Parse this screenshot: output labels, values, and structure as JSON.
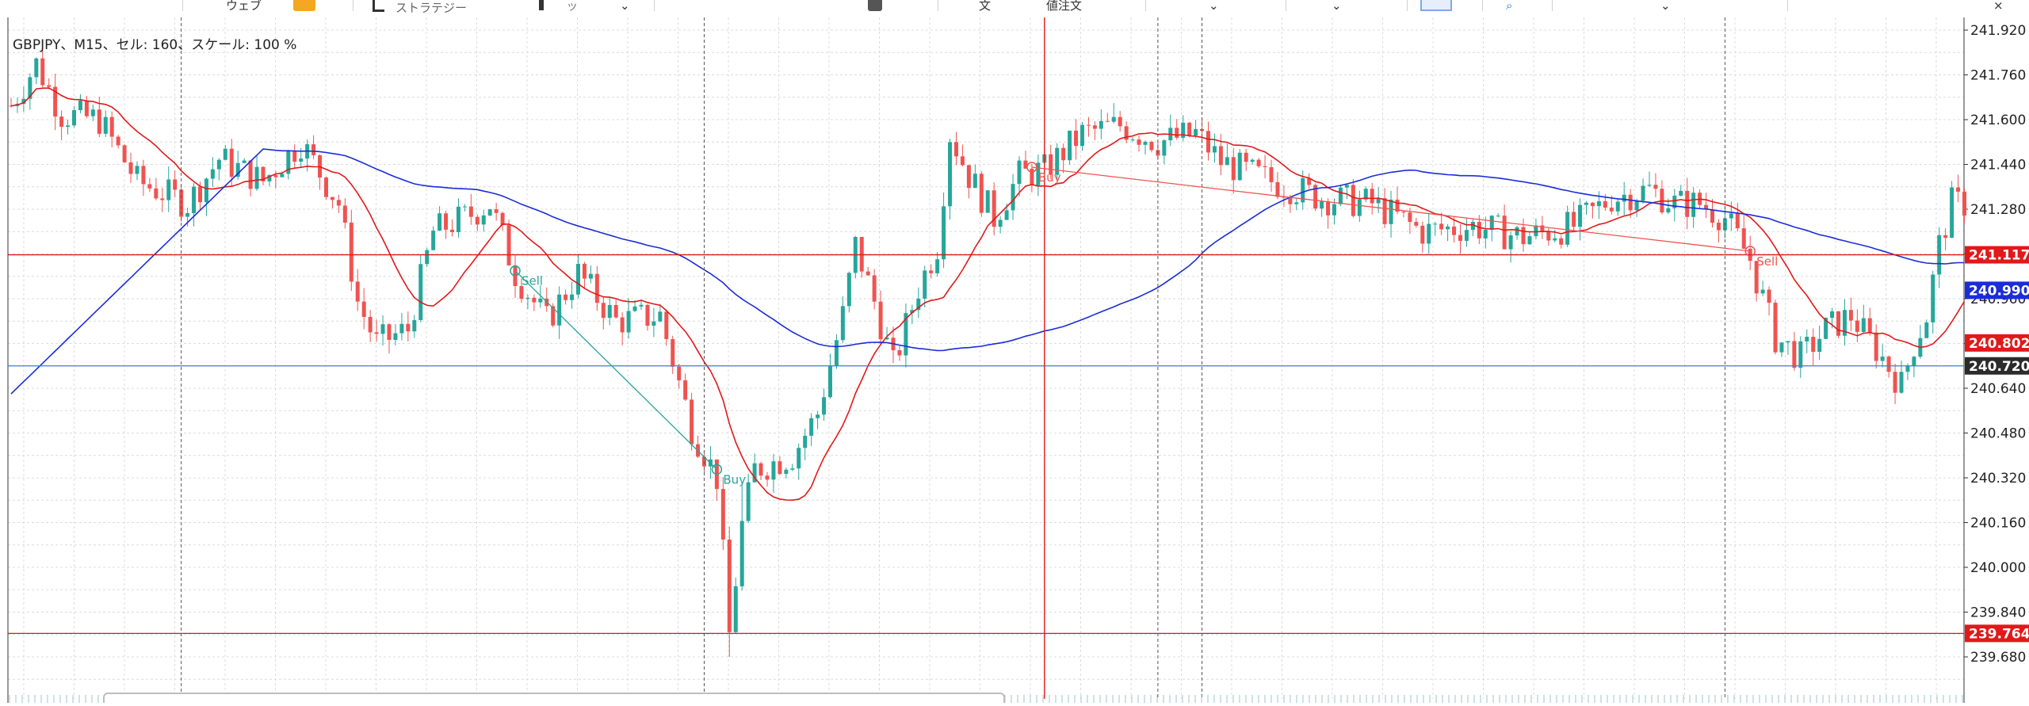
{
  "toolbar": {
    "items": [
      {
        "label": "ウェブ",
        "icon": "web-icon"
      },
      {
        "label": "ストラテジー",
        "icon": "bar-chart-icon"
      },
      {
        "label": "ツ",
        "icon": "candlestick-icon"
      },
      {
        "label": "文",
        "icon": "text-icon"
      },
      {
        "label": "値注文",
        "icon": "order-icon"
      }
    ],
    "colors": {
      "accent": "#f5a623",
      "search": "#1a73e8"
    }
  },
  "chart_title": "GBPJPY、M15、セル: 160、スケール: 100 %",
  "chart_data": {
    "type": "candlestick",
    "symbol": "GBPJPY",
    "timeframe": "M15",
    "ylim": [
      239.64,
      241.96
    ],
    "y_ticks": [
      "241.920",
      "241.760",
      "241.600",
      "241.440",
      "241.280",
      "241.120",
      "240.960",
      "240.800",
      "240.640",
      "240.480",
      "240.320",
      "240.160",
      "240.000",
      "239.840",
      "239.680"
    ],
    "grid": true,
    "ma_fast": {
      "name": "",
      "color": "#e11919"
    },
    "ma_slow": {
      "name": "",
      "color": "#1a2dd8"
    },
    "horizontal_lines": [
      {
        "price": 241.117,
        "color": "#e11919"
      },
      {
        "price": 240.72,
        "color": "#3d7be3"
      },
      {
        "price": 239.764,
        "color": "#e11919"
      }
    ],
    "vertical_lines": [
      {
        "bar": 164,
        "color": "#e11919",
        "style": "solid"
      },
      {
        "bar": 27,
        "color": "#555555",
        "style": "dashed"
      },
      {
        "bar": 110,
        "color": "#555555",
        "style": "dashed"
      },
      {
        "bar": 182,
        "color": "#555555",
        "style": "dashed"
      },
      {
        "bar": 189,
        "color": "#555555",
        "style": "dashed"
      },
      {
        "bar": 272,
        "color": "#555555",
        "style": "dashed"
      }
    ],
    "price_labels": [
      {
        "text": "241.117",
        "price": 241.117,
        "bg": "#e11919",
        "fg": "#ffffff"
      },
      {
        "text": "240.990",
        "price": 240.99,
        "bg": "#1a2dd8",
        "fg": "#ffffff"
      },
      {
        "text": "240.802",
        "price": 240.802,
        "bg": "#e11919",
        "fg": "#ffffff"
      },
      {
        "text": "240.720",
        "price": 240.72,
        "bg": "#2b2b2b",
        "fg": "#ffffff"
      },
      {
        "text": "239.764",
        "price": 239.764,
        "bg": "#e11919",
        "fg": "#ffffff"
      }
    ],
    "trades": [
      {
        "from_bar": 80,
        "from_price": 241.06,
        "to_bar": 112,
        "to_price": 240.35,
        "color": "#26a69a",
        "open_label": "Sell",
        "close_label": "Buy"
      },
      {
        "from_bar": 162,
        "from_price": 241.43,
        "to_bar": 276,
        "to_price": 241.13,
        "color": "#ef5350",
        "open_label": "Buy",
        "close_label": "Sell"
      }
    ],
    "anchors": [
      {
        "bar": 0,
        "price": 241.65
      },
      {
        "bar": 4,
        "price": 241.8
      },
      {
        "bar": 8,
        "price": 241.62
      },
      {
        "bar": 14,
        "price": 241.6
      },
      {
        "bar": 20,
        "price": 241.38
      },
      {
        "bar": 28,
        "price": 241.3
      },
      {
        "bar": 33,
        "price": 241.46
      },
      {
        "bar": 40,
        "price": 241.38
      },
      {
        "bar": 46,
        "price": 241.52
      },
      {
        "bar": 52,
        "price": 241.3
      },
      {
        "bar": 55,
        "price": 240.95
      },
      {
        "bar": 58,
        "price": 240.8
      },
      {
        "bar": 63,
        "price": 240.85
      },
      {
        "bar": 67,
        "price": 241.2
      },
      {
        "bar": 72,
        "price": 241.25
      },
      {
        "bar": 76,
        "price": 241.3
      },
      {
        "bar": 80,
        "price": 241.05
      },
      {
        "bar": 85,
        "price": 240.88
      },
      {
        "bar": 90,
        "price": 241.05
      },
      {
        "bar": 96,
        "price": 240.88
      },
      {
        "bar": 103,
        "price": 240.9
      },
      {
        "bar": 108,
        "price": 240.5
      },
      {
        "bar": 112,
        "price": 240.32
      },
      {
        "bar": 114,
        "price": 239.76
      },
      {
        "bar": 116,
        "price": 240.15
      },
      {
        "bar": 118,
        "price": 240.35
      },
      {
        "bar": 124,
        "price": 240.4
      },
      {
        "bar": 128,
        "price": 240.55
      },
      {
        "bar": 132,
        "price": 240.9
      },
      {
        "bar": 134,
        "price": 241.15
      },
      {
        "bar": 137,
        "price": 240.95
      },
      {
        "bar": 140,
        "price": 240.72
      },
      {
        "bar": 144,
        "price": 241.0
      },
      {
        "bar": 147,
        "price": 241.15
      },
      {
        "bar": 149,
        "price": 241.55
      },
      {
        "bar": 152,
        "price": 241.4
      },
      {
        "bar": 156,
        "price": 241.25
      },
      {
        "bar": 160,
        "price": 241.4
      },
      {
        "bar": 164,
        "price": 241.42
      },
      {
        "bar": 170,
        "price": 241.55
      },
      {
        "bar": 176,
        "price": 241.58
      },
      {
        "bar": 182,
        "price": 241.52
      },
      {
        "bar": 188,
        "price": 241.55
      },
      {
        "bar": 192,
        "price": 241.45
      },
      {
        "bar": 200,
        "price": 241.38
      },
      {
        "bar": 208,
        "price": 241.32
      },
      {
        "bar": 216,
        "price": 241.3
      },
      {
        "bar": 224,
        "price": 241.2
      },
      {
        "bar": 232,
        "price": 241.22
      },
      {
        "bar": 240,
        "price": 241.18
      },
      {
        "bar": 248,
        "price": 241.22
      },
      {
        "bar": 254,
        "price": 241.32
      },
      {
        "bar": 260,
        "price": 241.35
      },
      {
        "bar": 264,
        "price": 241.3
      },
      {
        "bar": 268,
        "price": 241.3
      },
      {
        "bar": 272,
        "price": 241.25
      },
      {
        "bar": 276,
        "price": 241.1
      },
      {
        "bar": 280,
        "price": 240.82
      },
      {
        "bar": 284,
        "price": 240.75
      },
      {
        "bar": 288,
        "price": 240.85
      },
      {
        "bar": 292,
        "price": 240.9
      },
      {
        "bar": 296,
        "price": 240.78
      },
      {
        "bar": 300,
        "price": 240.65
      },
      {
        "bar": 302,
        "price": 240.8
      },
      {
        "bar": 304,
        "price": 240.9
      },
      {
        "bar": 306,
        "price": 241.15
      },
      {
        "bar": 308,
        "price": 241.3
      }
    ]
  }
}
